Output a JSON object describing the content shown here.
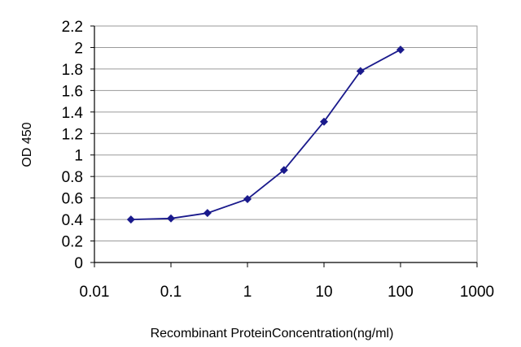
{
  "chart_data": {
    "type": "line",
    "title": "",
    "xlabel": "Recombinant ProteinConcentration(ng/ml)",
    "ylabel": "OD 450",
    "x_scale": "log",
    "xlim": [
      0.01,
      1000
    ],
    "ylim": [
      0,
      2.2
    ],
    "x_ticks": [
      "0.01",
      "0.1",
      "1",
      "10",
      "100",
      "1000"
    ],
    "y_ticks": [
      "0",
      "0.2",
      "0.4",
      "0.6",
      "0.8",
      "1",
      "1.2",
      "1.4",
      "1.6",
      "1.8",
      "2",
      "2.2"
    ],
    "grid": true,
    "legend": "none",
    "series": [
      {
        "x": [
          0.03,
          0.1,
          0.3,
          1,
          3,
          10,
          30,
          100
        ],
        "y": [
          0.4,
          0.41,
          0.46,
          0.59,
          0.86,
          1.31,
          1.78,
          1.98
        ],
        "color": "#1a1a8c",
        "marker": "diamond"
      }
    ],
    "colors": {
      "line": "#1a1a8c",
      "grid": "#9a9a9a",
      "axis": "#000000"
    }
  }
}
